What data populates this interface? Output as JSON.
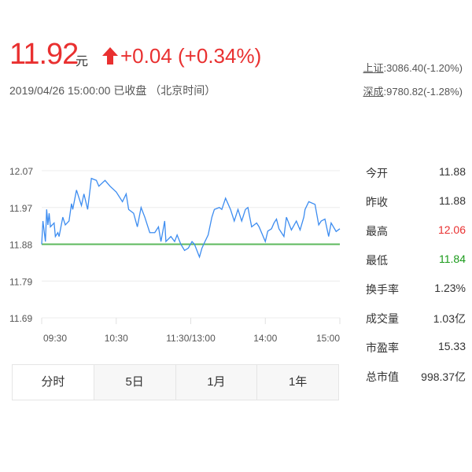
{
  "quote": {
    "price": "11.92",
    "unit": "元",
    "change": "+0.04 (+0.34%)",
    "datetime": "2019/04/26 15:00:00  已收盘 （北京时间）",
    "up_color": "#e93030",
    "down_color": "#1a9a1a"
  },
  "indices": [
    {
      "name": "上证",
      "value": ":3086.40(-1.20%)"
    },
    {
      "name": "深成",
      "value": ":9780.82(-1.28%)"
    }
  ],
  "stats": [
    {
      "label": "今开",
      "value": "11.88",
      "color": "#333333"
    },
    {
      "label": "昨收",
      "value": "11.88",
      "color": "#333333"
    },
    {
      "label": "最高",
      "value": "12.06",
      "color": "#e93030"
    },
    {
      "label": "最低",
      "value": "11.84",
      "color": "#1a9a1a"
    },
    {
      "label": "换手率",
      "value": "1.23%",
      "color": "#333333"
    },
    {
      "label": "成交量",
      "value": "1.03亿",
      "color": "#333333"
    },
    {
      "label": "市盈率",
      "value": "15.33",
      "color": "#333333"
    },
    {
      "label": "总市值",
      "value": "998.37亿",
      "color": "#333333"
    }
  ],
  "tabs": [
    "分时",
    "5日",
    "1月",
    "1年"
  ],
  "chart_data": {
    "type": "line",
    "ylim": [
      11.69,
      12.07
    ],
    "y_ticks": [
      "12.07",
      "11.97",
      "11.88",
      "11.79",
      "11.69"
    ],
    "x_ticks": [
      "09:30",
      "10:30",
      "11:30/13:00",
      "14:00",
      "15:00"
    ],
    "x_unit": "trading minutes since 09:30",
    "xlim": [
      0,
      240
    ],
    "reference_line": {
      "value": 11.88,
      "color": "#5cb85c"
    },
    "line_color": "#3c8cf0",
    "grid": true,
    "x": [
      0,
      1,
      3,
      4,
      5,
      6,
      7,
      10,
      11,
      13,
      14,
      17,
      19,
      22,
      24,
      25,
      28,
      30,
      32,
      34,
      37,
      40,
      44,
      46,
      51,
      55,
      60,
      65,
      68,
      70,
      74,
      77,
      80,
      83,
      87,
      91,
      94,
      96,
      99,
      100,
      104,
      107,
      109,
      112,
      115,
      118,
      121,
      123,
      127,
      129,
      131,
      134,
      137,
      139,
      143,
      145,
      148,
      152,
      155,
      158,
      161,
      164,
      166,
      169,
      173,
      175,
      180,
      182,
      185,
      187,
      189,
      191,
      195,
      197,
      201,
      205,
      208,
      211,
      212,
      215,
      220,
      223,
      225,
      228,
      231,
      233,
      237,
      240
    ],
    "y": [
      11.88,
      11.94,
      11.887,
      11.97,
      11.93,
      11.96,
      11.925,
      11.935,
      11.9,
      11.91,
      11.9,
      11.95,
      11.93,
      11.94,
      11.985,
      11.97,
      12.02,
      12.0,
      11.98,
      12.01,
      11.97,
      12.05,
      12.045,
      12.03,
      12.045,
      12.03,
      12.015,
      11.99,
      12.01,
      11.97,
      11.96,
      11.925,
      11.975,
      11.95,
      11.91,
      11.91,
      11.925,
      11.887,
      11.94,
      11.887,
      11.9,
      11.887,
      11.904,
      11.88,
      11.864,
      11.87,
      11.887,
      11.88,
      11.847,
      11.87,
      11.884,
      11.904,
      11.95,
      11.97,
      11.975,
      11.97,
      11.999,
      11.97,
      11.94,
      11.97,
      11.94,
      11.97,
      11.975,
      11.925,
      11.935,
      11.925,
      11.887,
      11.914,
      11.92,
      11.935,
      11.945,
      11.92,
      11.9,
      11.95,
      11.917,
      11.94,
      11.917,
      11.95,
      11.97,
      11.99,
      11.983,
      11.93,
      11.94,
      11.945,
      11.9,
      11.935,
      11.913,
      11.92
    ]
  }
}
